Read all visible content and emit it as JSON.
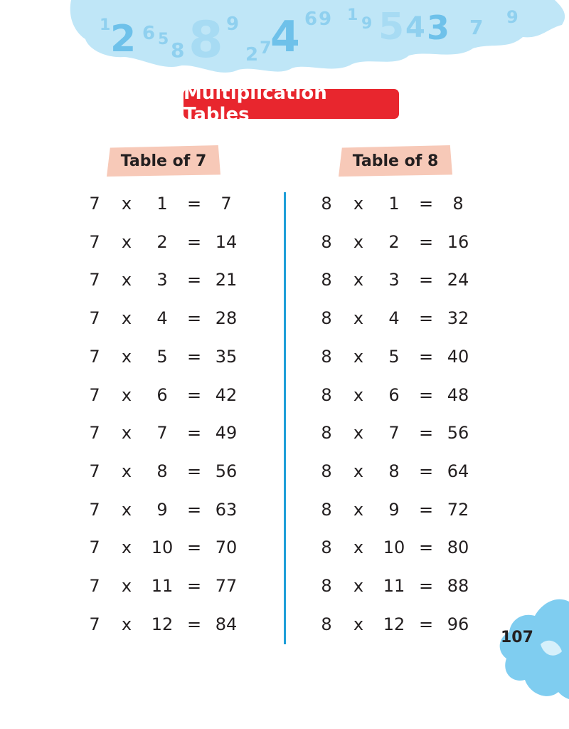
{
  "title": "Multiplication Tables",
  "tables": [
    {
      "label": "Table of 7",
      "rows": [
        {
          "a": "7",
          "op": "x",
          "b": "1",
          "eq": "=",
          "r": "7"
        },
        {
          "a": "7",
          "op": "x",
          "b": "2",
          "eq": "=",
          "r": "14"
        },
        {
          "a": "7",
          "op": "x",
          "b": "3",
          "eq": "=",
          "r": "21"
        },
        {
          "a": "7",
          "op": "x",
          "b": "4",
          "eq": "=",
          "r": "28"
        },
        {
          "a": "7",
          "op": "x",
          "b": "5",
          "eq": "=",
          "r": "35"
        },
        {
          "a": "7",
          "op": "x",
          "b": "6",
          "eq": "=",
          "r": "42"
        },
        {
          "a": "7",
          "op": "x",
          "b": "7",
          "eq": "=",
          "r": "49"
        },
        {
          "a": "7",
          "op": "x",
          "b": "8",
          "eq": "=",
          "r": "56"
        },
        {
          "a": "7",
          "op": "x",
          "b": "9",
          "eq": "=",
          "r": "63"
        },
        {
          "a": "7",
          "op": "x",
          "b": "10",
          "eq": "=",
          "r": "70"
        },
        {
          "a": "7",
          "op": "x",
          "b": "11",
          "eq": "=",
          "r": "77"
        },
        {
          "a": "7",
          "op": "x",
          "b": "12",
          "eq": "=",
          "r": "84"
        }
      ]
    },
    {
      "label": "Table of 8",
      "rows": [
        {
          "a": "8",
          "op": "x",
          "b": "1",
          "eq": "=",
          "r": "8"
        },
        {
          "a": "8",
          "op": "x",
          "b": "2",
          "eq": "=",
          "r": "16"
        },
        {
          "a": "8",
          "op": "x",
          "b": "3",
          "eq": "=",
          "r": "24"
        },
        {
          "a": "8",
          "op": "x",
          "b": "4",
          "eq": "=",
          "r": "32"
        },
        {
          "a": "8",
          "op": "x",
          "b": "5",
          "eq": "=",
          "r": "40"
        },
        {
          "a": "8",
          "op": "x",
          "b": "6",
          "eq": "=",
          "r": "48"
        },
        {
          "a": "8",
          "op": "x",
          "b": "7",
          "eq": "=",
          "r": "56"
        },
        {
          "a": "8",
          "op": "x",
          "b": "8",
          "eq": "=",
          "r": "64"
        },
        {
          "a": "8",
          "op": "x",
          "b": "9",
          "eq": "=",
          "r": "72"
        },
        {
          "a": "8",
          "op": "x",
          "b": "10",
          "eq": "=",
          "r": "80"
        },
        {
          "a": "8",
          "op": "x",
          "b": "11",
          "eq": "=",
          "r": "88"
        },
        {
          "a": "8",
          "op": "x",
          "b": "12",
          "eq": "=",
          "r": "96"
        }
      ]
    }
  ],
  "page_number": "107",
  "colors": {
    "title_badge": "#e8262e",
    "tab_badge": "#f7c9b8",
    "divider": "#1f9fd8",
    "splash": "#bfe6f7",
    "splash_digits": "#8fd0ef"
  },
  "decor": {
    "header_digits": "1 2 6 5 8 8 9 2 7 4 6 9 1 9 5 4 3 7 9"
  }
}
